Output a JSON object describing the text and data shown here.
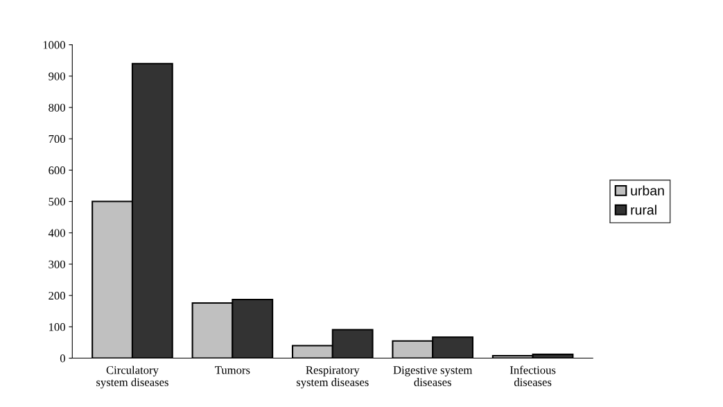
{
  "chart_data": {
    "type": "bar",
    "categories": [
      "Circulatory\nsystem diseases",
      "Tumors",
      "Respiratory\nsystem diseases",
      "Digestive system\ndiseases",
      "Infectious\ndiseases"
    ],
    "series": [
      {
        "name": "urban",
        "color": "#c0c0c0",
        "values": [
          500,
          176,
          40,
          55,
          8
        ]
      },
      {
        "name": "rural",
        "color": "#333333",
        "values": [
          940,
          187,
          91,
          67,
          12
        ]
      }
    ],
    "ylim": [
      0,
      1000
    ],
    "yticks": [
      0,
      100,
      200,
      300,
      400,
      500,
      600,
      700,
      800,
      900,
      1000
    ],
    "grid": false,
    "legend": "right"
  }
}
